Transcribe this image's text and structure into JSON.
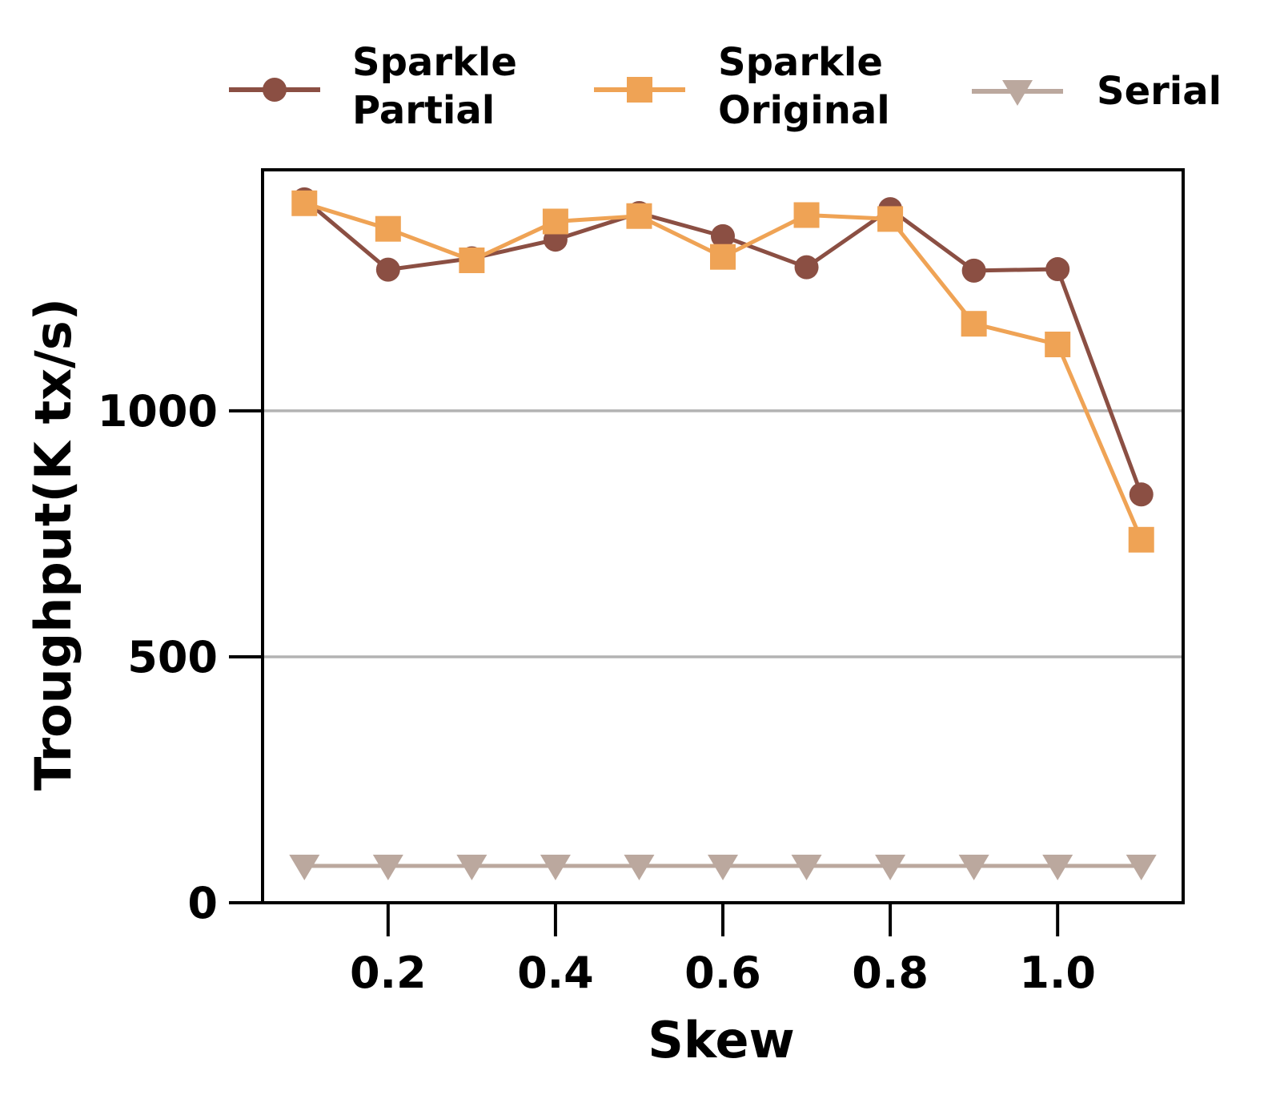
{
  "chart_data": {
    "type": "line",
    "title": "",
    "xlabel": "Skew",
    "ylabel": "Troughput(K tx/s)",
    "x": [
      0.1,
      0.2,
      0.3,
      0.4,
      0.5,
      0.6,
      0.7,
      0.8,
      0.9,
      1.0,
      1.1
    ],
    "xlim": [
      0.05,
      1.15
    ],
    "ylim": [
      0,
      1490
    ],
    "xticks": [
      0.2,
      0.4,
      0.6,
      0.8,
      1.0
    ],
    "xtick_labels": [
      "0.2",
      "0.4",
      "0.6",
      "0.8",
      "1.0"
    ],
    "yticks": [
      0,
      500,
      1000
    ],
    "ytick_labels": [
      "0",
      "500",
      "1000"
    ],
    "grid": "horizontal",
    "legend_position": "top",
    "series": [
      {
        "name": "Sparkle Partial",
        "name_lines": [
          "Sparkle",
          "Partial"
        ],
        "color": "#8B4F43",
        "marker": "circle",
        "values": [
          1430,
          1287,
          1310,
          1348,
          1402,
          1355,
          1292,
          1410,
          1285,
          1288,
          830
        ]
      },
      {
        "name": "Sparkle Original",
        "name_lines": [
          "Sparkle",
          "Original"
        ],
        "color": "#EFA355",
        "marker": "square",
        "values": [
          1422,
          1370,
          1306,
          1385,
          1396,
          1313,
          1398,
          1390,
          1177,
          1135,
          738
        ]
      },
      {
        "name": "Serial",
        "name_lines": [
          "Serial"
        ],
        "color": "#BBA89E",
        "marker": "triangle-down",
        "values": [
          75,
          75,
          75,
          75,
          75,
          75,
          75,
          75,
          75,
          75,
          75
        ]
      }
    ]
  }
}
